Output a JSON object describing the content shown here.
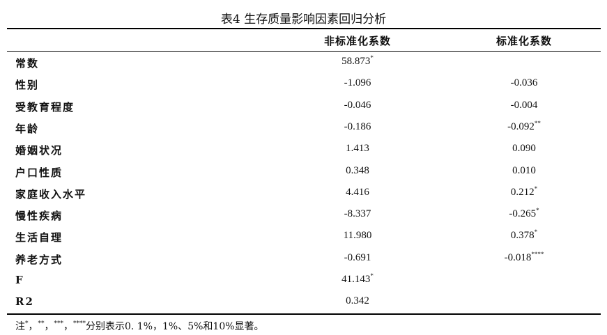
{
  "title": "表4  生存质量影响因素回归分析",
  "table": {
    "header": [
      "非标准化系数",
      "标准化系数"
    ],
    "rows": [
      {
        "label": "常数",
        "cells": [
          {
            "text": "58.873",
            "sup": "*"
          },
          null
        ]
      },
      {
        "label": "性别",
        "cells": [
          {
            "text": "-1.096"
          },
          {
            "text": "-0.036"
          }
        ]
      },
      {
        "label": "受教育程度",
        "cells": [
          {
            "text": "-0.046"
          },
          {
            "text": "-0.004"
          }
        ]
      },
      {
        "label": "年龄",
        "cells": [
          {
            "text": "-0.186"
          },
          {
            "text": "-0.092",
            "sup": "**"
          }
        ]
      },
      {
        "label": "婚姻状况",
        "cells": [
          {
            "text": "1.413"
          },
          {
            "text": "0.090"
          }
        ]
      },
      {
        "label": "户口性质",
        "cells": [
          {
            "text": "0.348"
          },
          {
            "text": "0.010"
          }
        ]
      },
      {
        "label": "家庭收入水平",
        "cells": [
          {
            "text": "4.416"
          },
          {
            "text": "0.212",
            "sup": "*"
          }
        ]
      },
      {
        "label": "慢性疾病",
        "cells": [
          {
            "text": "-8.337"
          },
          {
            "text": "-0.265",
            "sup": "*"
          }
        ]
      },
      {
        "label": "生活自理",
        "cells": [
          {
            "text": "11.980"
          },
          {
            "text": "0.378",
            "sup": "*"
          }
        ]
      },
      {
        "label": "养老方式",
        "cells": [
          {
            "text": "-0.691"
          },
          {
            "text": "-0.018",
            "sup": "****"
          }
        ]
      },
      {
        "label": "F",
        "cells": [
          {
            "text": "41.143",
            "sup": "*"
          },
          null
        ]
      },
      {
        "label": "R2",
        "cells": [
          {
            "text": "0.342"
          },
          null
        ]
      }
    ]
  },
  "note": [
    {
      "text": "注"
    },
    {
      "sup": "*"
    },
    {
      "text": "，"
    },
    {
      "sup": "**"
    },
    {
      "text": "，"
    },
    {
      "sup": "***"
    },
    {
      "text": "，"
    },
    {
      "sup": "****"
    },
    {
      "text": "分别表示0. 1%，1%、5%和10%显著。"
    }
  ]
}
